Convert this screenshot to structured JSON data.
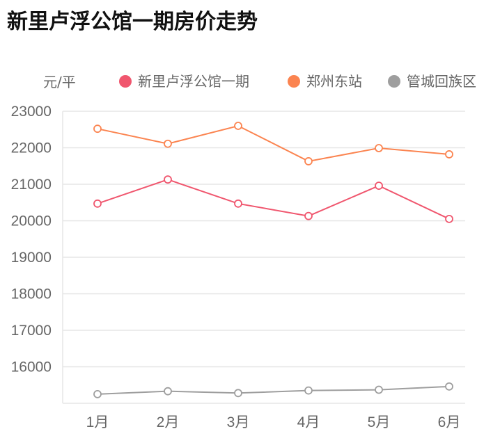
{
  "chart_data": {
    "type": "line",
    "title": "新里卢浮公馆一期房价走势",
    "ylabel": "元/平",
    "xlabel": "",
    "categories": [
      "1月",
      "2月",
      "3月",
      "4月",
      "5月",
      "6月"
    ],
    "ylim": [
      15000,
      23000
    ],
    "yticks": [
      "23000",
      "22000",
      "21000",
      "20000",
      "19000",
      "18000",
      "17000",
      "16000"
    ],
    "grid": true,
    "legend_position": "top",
    "series": [
      {
        "name": "新里卢浮公馆一期",
        "color": "#f0566e",
        "values": [
          20470,
          21130,
          20470,
          20130,
          20960,
          20050
        ]
      },
      {
        "name": "郑州东站",
        "color": "#fb8450",
        "values": [
          22520,
          22110,
          22600,
          21630,
          21990,
          21820
        ]
      },
      {
        "name": "管城回族区",
        "color": "#9e9e9e",
        "values": [
          15250,
          15330,
          15280,
          15350,
          15370,
          15460
        ]
      }
    ]
  }
}
